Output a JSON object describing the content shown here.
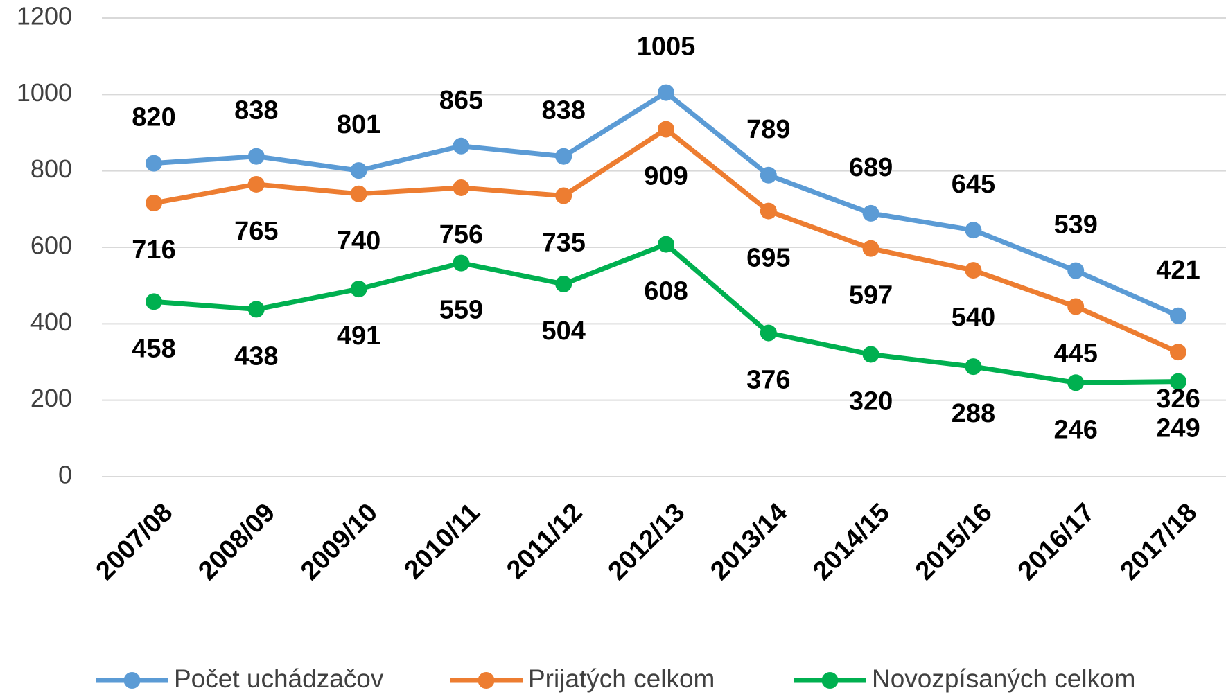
{
  "chart_data": {
    "type": "line",
    "categories": [
      "2007/08",
      "2008/09",
      "2009/10",
      "2010/11",
      "2011/12",
      "2012/13",
      "2013/14",
      "2014/15",
      "2015/16",
      "2016/17",
      "2017/18"
    ],
    "series": [
      {
        "name": "Počet uchádzačov",
        "color": "#5b9bd5",
        "values": [
          820,
          838,
          801,
          865,
          838,
          1005,
          789,
          689,
          645,
          539,
          421
        ]
      },
      {
        "name": "Prijatých celkom",
        "color": "#ed7d31",
        "values": [
          716,
          765,
          740,
          756,
          735,
          909,
          695,
          597,
          540,
          445,
          326
        ]
      },
      {
        "name": "Novozpísaných celkom",
        "color": "#00b050",
        "values": [
          458,
          438,
          491,
          559,
          504,
          608,
          376,
          320,
          288,
          246,
          249
        ]
      }
    ],
    "ylim": [
      0,
      1200
    ],
    "yticks": [
      0,
      200,
      400,
      600,
      800,
      1000,
      1200
    ],
    "grid": true,
    "legend": "bottom"
  }
}
